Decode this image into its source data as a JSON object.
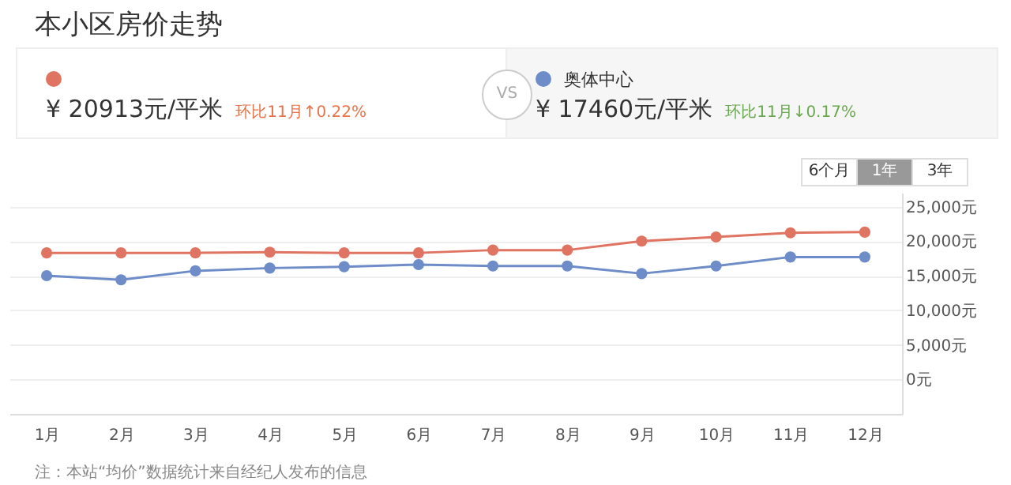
{
  "chart_data": {
    "type": "line",
    "title": "本小区房价走势",
    "categories": [
      "1月",
      "2月",
      "3月",
      "4月",
      "5月",
      "6月",
      "7月",
      "8月",
      "9月",
      "10月",
      "11月",
      "12月"
    ],
    "series": [
      {
        "color": "#e07462",
        "values": [
          18300,
          18300,
          18300,
          18400,
          18300,
          18300,
          18700,
          18700,
          20000,
          20600,
          21200,
          21300
        ]
      },
      {
        "name": "奥体中心",
        "color": "#6d8cc8",
        "values": [
          15000,
          14400,
          15700,
          16100,
          16300,
          16600,
          16400,
          16400,
          15300,
          16400,
          17700,
          17700
        ]
      }
    ],
    "ylim": [
      -5000,
      27000
    ],
    "yticks": [
      {
        "value": 0,
        "label": "0元"
      },
      {
        "value": 5000,
        "label": "5,000元"
      },
      {
        "value": 10000,
        "label": "10,000元"
      },
      {
        "value": 15000,
        "label": "15,000元"
      },
      {
        "value": 20000,
        "label": "20,000元"
      },
      {
        "value": 25000,
        "label": "25,000元"
      }
    ],
    "grid": "y",
    "legend": "top",
    "marker": "circle",
    "line_style": "solid",
    "annotations": [
      "¥ 20913元/平米",
      "环比11月↑0.22%",
      "VS",
      "¥ 17460元/平米",
      "环比11月↓0.17%",
      "6个月",
      "1年",
      "3年",
      "注：本站“均价”数据统计来自经纪人发布的信息"
    ]
  }
}
